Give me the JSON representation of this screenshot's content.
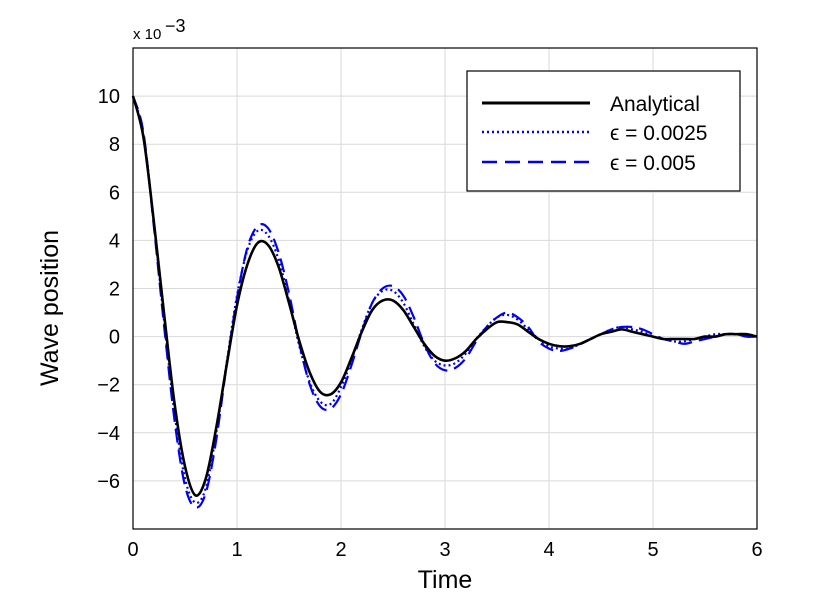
{
  "chart_data": {
    "type": "line",
    "title": "",
    "xlabel": "Time",
    "ylabel": "Wave position",
    "xlim": [
      0,
      6
    ],
    "ylim": [
      -8,
      12
    ],
    "y_scale_label": "x 10",
    "y_scale_exponent": "−3",
    "xticks": [
      "0",
      "1",
      "2",
      "3",
      "4",
      "5",
      "6"
    ],
    "yticks": [
      "−6",
      "−4",
      "−2",
      "0",
      "2",
      "4",
      "6",
      "8",
      "10"
    ],
    "grid": true,
    "legend_position": "top-right",
    "colors": {
      "analytical": "#000000",
      "eps1": "#0000ee",
      "eps2": "#0000ee"
    },
    "series": [
      {
        "name": "Analytical",
        "style": "solid",
        "x": [
          0,
          0.1,
          0.2,
          0.3,
          0.4,
          0.5,
          0.6,
          0.7,
          0.8,
          0.9,
          1.0,
          1.1,
          1.2,
          1.3,
          1.4,
          1.5,
          1.6,
          1.7,
          1.8,
          1.9,
          2.0,
          2.1,
          2.2,
          2.3,
          2.4,
          2.5,
          2.6,
          2.7,
          2.8,
          2.9,
          3.0,
          3.1,
          3.2,
          3.3,
          3.4,
          3.5,
          3.6,
          3.7,
          3.8,
          3.9,
          4.0,
          4.1,
          4.2,
          4.3,
          4.4,
          4.5,
          4.6,
          4.7,
          4.8,
          4.9,
          5.0,
          5.1,
          5.2,
          5.3,
          5.4,
          5.5,
          5.6,
          5.7,
          5.8,
          5.9,
          6.0
        ],
        "y": [
          10.0,
          8.3,
          4.8,
          0.9,
          -2.8,
          -5.4,
          -6.6,
          -5.9,
          -3.8,
          -1.2,
          1.3,
          3.0,
          3.9,
          3.8,
          2.9,
          1.4,
          -0.2,
          -1.5,
          -2.3,
          -2.4,
          -1.9,
          -0.9,
          0.2,
          1.1,
          1.5,
          1.5,
          1.1,
          0.4,
          -0.3,
          -0.8,
          -1.0,
          -0.9,
          -0.6,
          -0.1,
          0.3,
          0.6,
          0.6,
          0.5,
          0.2,
          -0.1,
          -0.3,
          -0.4,
          -0.4,
          -0.3,
          -0.1,
          0.1,
          0.2,
          0.3,
          0.2,
          0.1,
          0.0,
          -0.1,
          -0.1,
          -0.1,
          -0.1,
          0.0,
          0.0,
          0.1,
          0.1,
          0.1,
          0.0
        ]
      },
      {
        "name": "ϵ = 0.0025",
        "style": "dotted",
        "x": [
          0,
          0.1,
          0.2,
          0.3,
          0.4,
          0.5,
          0.6,
          0.7,
          0.8,
          0.9,
          1.0,
          1.1,
          1.2,
          1.3,
          1.4,
          1.5,
          1.6,
          1.7,
          1.8,
          1.9,
          2.0,
          2.1,
          2.2,
          2.3,
          2.4,
          2.5,
          2.6,
          2.7,
          2.8,
          2.9,
          3.0,
          3.1,
          3.2,
          3.3,
          3.4,
          3.5,
          3.6,
          3.7,
          3.8,
          3.9,
          4.0,
          4.1,
          4.2,
          4.3,
          4.4,
          4.5,
          4.6,
          4.7,
          4.8,
          4.9,
          5.0,
          5.1,
          5.2,
          5.3,
          5.4,
          5.5,
          5.6,
          5.7,
          5.8,
          5.9,
          6.0
        ],
        "y": [
          10.0,
          8.4,
          4.7,
          0.6,
          -3.2,
          -5.9,
          -6.9,
          -6.3,
          -4.0,
          -1.1,
          1.7,
          3.6,
          4.4,
          4.2,
          3.2,
          1.5,
          -0.4,
          -1.9,
          -2.7,
          -2.8,
          -2.1,
          -1.0,
          0.3,
          1.4,
          1.9,
          1.9,
          1.4,
          0.5,
          -0.4,
          -1.0,
          -1.2,
          -1.1,
          -0.7,
          -0.1,
          0.4,
          0.8,
          0.9,
          0.7,
          0.3,
          -0.1,
          -0.4,
          -0.5,
          -0.5,
          -0.3,
          -0.1,
          0.1,
          0.3,
          0.4,
          0.3,
          0.2,
          0.0,
          -0.1,
          -0.2,
          -0.2,
          -0.1,
          0.0,
          0.1,
          0.1,
          0.1,
          0.0,
          0.0
        ]
      },
      {
        "name": "ϵ = 0.005",
        "style": "dashed",
        "x": [
          0,
          0.1,
          0.2,
          0.3,
          0.4,
          0.5,
          0.6,
          0.7,
          0.8,
          0.9,
          1.0,
          1.1,
          1.2,
          1.3,
          1.4,
          1.5,
          1.6,
          1.7,
          1.8,
          1.9,
          2.0,
          2.1,
          2.2,
          2.3,
          2.4,
          2.5,
          2.6,
          2.7,
          2.8,
          2.9,
          3.0,
          3.1,
          3.2,
          3.3,
          3.4,
          3.5,
          3.6,
          3.7,
          3.8,
          3.9,
          4.0,
          4.1,
          4.2,
          4.3,
          4.4,
          4.5,
          4.6,
          4.7,
          4.8,
          4.9,
          5.0,
          5.1,
          5.2,
          5.3,
          5.4,
          5.5,
          5.6,
          5.7,
          5.8,
          5.9,
          6.0
        ],
        "y": [
          10.0,
          8.5,
          4.6,
          0.4,
          -3.5,
          -6.2,
          -7.1,
          -6.5,
          -4.3,
          -1.2,
          1.6,
          3.7,
          4.6,
          4.5,
          3.5,
          1.8,
          -0.3,
          -2.0,
          -2.9,
          -3.0,
          -2.4,
          -1.2,
          0.2,
          1.4,
          2.0,
          2.1,
          1.7,
          0.8,
          -0.3,
          -1.1,
          -1.4,
          -1.3,
          -0.9,
          -0.2,
          0.4,
          0.8,
          1.0,
          0.8,
          0.4,
          -0.2,
          -0.5,
          -0.6,
          -0.5,
          -0.3,
          -0.1,
          0.1,
          0.3,
          0.4,
          0.4,
          0.3,
          0.1,
          -0.1,
          -0.2,
          -0.3,
          -0.2,
          -0.1,
          0.0,
          0.1,
          0.1,
          0.0,
          0.0
        ]
      }
    ]
  }
}
